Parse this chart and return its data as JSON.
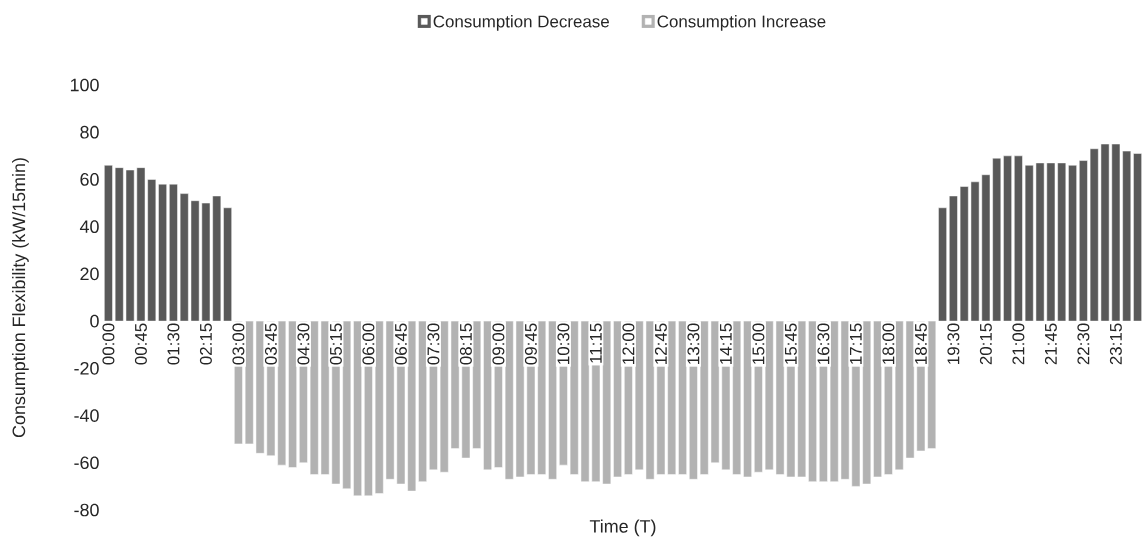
{
  "chart_data": {
    "type": "bar",
    "xlabel": "Time (T)",
    "ylabel": "Consumption Flexibility (kW/15min)",
    "categories": [
      "00:00",
      null,
      null,
      "00:45",
      null,
      null,
      "01:30",
      null,
      null,
      "02:15",
      null,
      null,
      "03:00",
      null,
      null,
      "03:45",
      null,
      null,
      "04:30",
      null,
      null,
      "05:15",
      null,
      null,
      "06:00",
      null,
      null,
      "06:45",
      null,
      null,
      "07:30",
      null,
      null,
      "08:15",
      null,
      null,
      "09:00",
      null,
      null,
      "09:45",
      null,
      null,
      "10:30",
      null,
      null,
      "11:15",
      null,
      null,
      "12:00",
      null,
      null,
      "12:45",
      null,
      null,
      "13:30",
      null,
      null,
      "14:15",
      null,
      null,
      "15:00",
      null,
      null,
      "15:45",
      null,
      null,
      "16:30",
      null,
      null,
      "17:15",
      null,
      null,
      "18:00",
      null,
      null,
      "18:45",
      null,
      null,
      "19:30",
      null,
      null,
      "20:15",
      null,
      null,
      "21:00",
      null,
      null,
      "21:45",
      null,
      null,
      "22:30",
      null,
      null,
      "23:15",
      null,
      null
    ],
    "series": [
      {
        "name": "Consumption Decrease",
        "color": "#595959",
        "values": [
          66,
          65,
          64,
          65,
          60,
          58,
          58,
          54,
          51,
          50,
          53,
          48,
          null,
          null,
          null,
          null,
          null,
          null,
          null,
          null,
          null,
          null,
          null,
          null,
          null,
          null,
          null,
          null,
          null,
          null,
          null,
          null,
          null,
          null,
          null,
          null,
          null,
          null,
          null,
          null,
          null,
          null,
          null,
          null,
          null,
          null,
          null,
          null,
          null,
          null,
          null,
          null,
          null,
          null,
          null,
          null,
          null,
          null,
          null,
          null,
          null,
          null,
          null,
          null,
          null,
          null,
          null,
          null,
          null,
          null,
          null,
          null,
          null,
          null,
          null,
          null,
          null,
          48,
          53,
          57,
          59,
          62,
          69,
          70,
          70,
          66,
          67,
          67,
          67,
          66,
          68,
          73,
          75,
          75,
          72,
          71
        ]
      },
      {
        "name": "Consumption Increase",
        "color": "#b2b2b2",
        "values": [
          null,
          null,
          null,
          null,
          null,
          null,
          null,
          null,
          null,
          null,
          null,
          null,
          -52,
          -52,
          -56,
          -57,
          -61,
          -62,
          -60,
          -65,
          -65,
          -69,
          -71,
          -74,
          -74,
          -73,
          -67,
          -69,
          -72,
          -68,
          -63,
          -64,
          -54,
          -58,
          -54,
          -63,
          -62,
          -67,
          -66,
          -65,
          -65,
          -67,
          -61,
          -65,
          -68,
          -68,
          -69,
          -66,
          -65,
          -63,
          -67,
          -65,
          -65,
          -65,
          -67,
          -65,
          -60,
          -63,
          -65,
          -66,
          -64,
          -63,
          -65,
          -66,
          -66,
          -68,
          -68,
          -68,
          -67,
          -70,
          -69,
          -66,
          -65,
          -63,
          -58,
          -55,
          -54,
          null,
          null,
          null,
          null,
          null,
          null,
          null,
          null,
          null,
          null,
          null,
          null,
          null,
          null,
          null,
          null,
          null,
          null,
          null
        ]
      }
    ],
    "ylim": [
      -80,
      100
    ],
    "yticks": [
      -80,
      -60,
      -40,
      -20,
      0,
      20,
      40,
      60,
      80,
      100
    ],
    "legend": "top"
  }
}
